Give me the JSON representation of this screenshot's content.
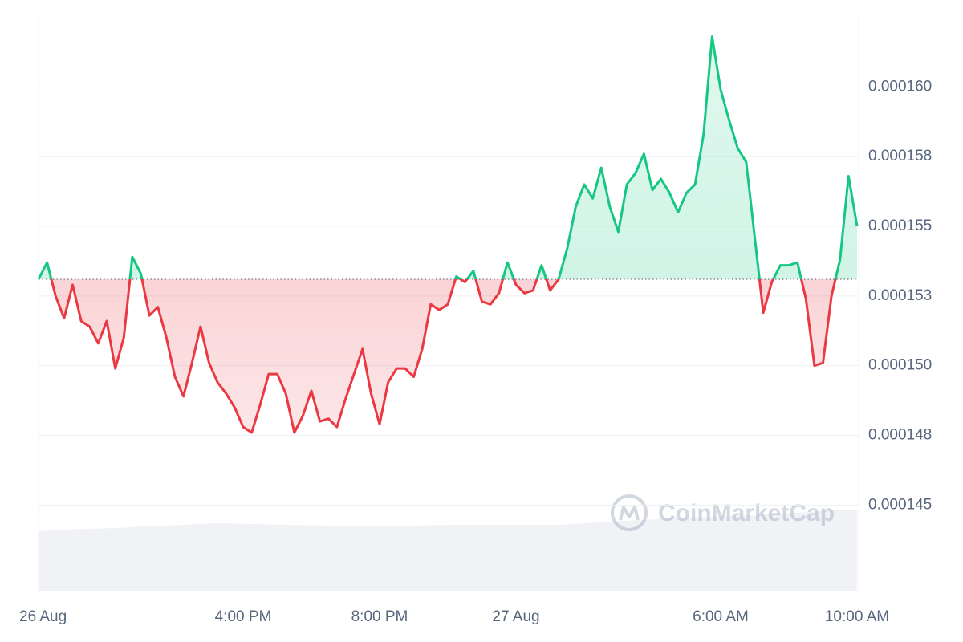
{
  "chart_data": {
    "type": "line",
    "watermark": "CoinMarketCap",
    "up_color": "#16c784",
    "down_color": "#ea3943",
    "grid": true,
    "baseline": 0.0001531,
    "xlim": [
      0,
      24
    ],
    "xticks": [
      {
        "value": 0,
        "label": "26 Aug"
      },
      {
        "value": 6,
        "label": "4:00 PM"
      },
      {
        "value": 10,
        "label": "8:00 PM"
      },
      {
        "value": 14,
        "label": "27 Aug"
      },
      {
        "value": 20,
        "label": "6:00 AM"
      },
      {
        "value": 24,
        "label": "10:00 AM"
      }
    ],
    "ylim": [
      0.0001419,
      0.0001626
    ],
    "yticks": [
      {
        "value": 0.000145,
        "label": "0.000145"
      },
      {
        "value": 0.0001475,
        "label": "0.000148"
      },
      {
        "value": 0.00015,
        "label": "0.000150"
      },
      {
        "value": 0.0001525,
        "label": "0.000153"
      },
      {
        "value": 0.000155,
        "label": "0.000155"
      },
      {
        "value": 0.0001575,
        "label": "0.000158"
      },
      {
        "value": 0.00016,
        "label": "0.000160"
      }
    ],
    "x": [
      0,
      0.25,
      0.5,
      0.75,
      1,
      1.25,
      1.5,
      1.75,
      2,
      2.25,
      2.5,
      2.75,
      3,
      3.25,
      3.5,
      3.75,
      4,
      4.25,
      4.5,
      4.75,
      5,
      5.25,
      5.5,
      5.75,
      6,
      6.25,
      6.5,
      6.75,
      7,
      7.25,
      7.5,
      7.75,
      8,
      8.25,
      8.5,
      8.75,
      9,
      9.25,
      9.5,
      9.75,
      10,
      10.25,
      10.5,
      10.75,
      11,
      11.25,
      11.5,
      11.75,
      12,
      12.25,
      12.5,
      12.75,
      13,
      13.25,
      13.5,
      13.75,
      14,
      14.25,
      14.5,
      14.75,
      15,
      15.25,
      15.5,
      15.75,
      16,
      16.25,
      16.5,
      16.75,
      17,
      17.25,
      17.5,
      17.75,
      18,
      18.25,
      18.5,
      18.75,
      19,
      19.25,
      19.5,
      19.75,
      20,
      20.25,
      20.5,
      20.75,
      21,
      21.25,
      21.5,
      21.75,
      22,
      22.25,
      22.5,
      22.75,
      23,
      23.25,
      23.5,
      23.75,
      24
    ],
    "values": [
      0.0001531,
      0.0001537,
      0.0001525,
      0.0001517,
      0.0001529,
      0.0001516,
      0.0001514,
      0.0001508,
      0.0001516,
      0.0001499,
      0.000151,
      0.0001539,
      0.0001533,
      0.0001518,
      0.0001521,
      0.000151,
      0.0001496,
      0.0001489,
      0.0001501,
      0.0001514,
      0.0001501,
      0.0001494,
      0.000149,
      0.0001485,
      0.0001478,
      0.0001476,
      0.0001486,
      0.0001497,
      0.0001497,
      0.000149,
      0.0001476,
      0.0001482,
      0.0001491,
      0.000148,
      0.0001481,
      0.0001478,
      0.0001488,
      0.0001497,
      0.0001506,
      0.000149,
      0.0001479,
      0.0001494,
      0.0001499,
      0.0001499,
      0.0001496,
      0.0001506,
      0.0001522,
      0.000152,
      0.0001522,
      0.0001532,
      0.000153,
      0.0001534,
      0.0001523,
      0.0001522,
      0.0001526,
      0.0001537,
      0.0001529,
      0.0001526,
      0.0001527,
      0.0001536,
      0.0001527,
      0.0001531,
      0.0001542,
      0.0001557,
      0.0001565,
      0.000156,
      0.0001571,
      0.0001557,
      0.0001548,
      0.0001565,
      0.0001569,
      0.0001576,
      0.0001563,
      0.0001567,
      0.0001562,
      0.0001555,
      0.0001562,
      0.0001565,
      0.0001583,
      0.0001618,
      0.0001599,
      0.0001588,
      0.0001578,
      0.0001573,
      0.0001546,
      0.0001519,
      0.000153,
      0.0001536,
      0.0001536,
      0.0001537,
      0.0001524,
      0.00015,
      0.0001501,
      0.0001525,
      0.0001538,
      0.0001568,
      0.000155
    ]
  }
}
